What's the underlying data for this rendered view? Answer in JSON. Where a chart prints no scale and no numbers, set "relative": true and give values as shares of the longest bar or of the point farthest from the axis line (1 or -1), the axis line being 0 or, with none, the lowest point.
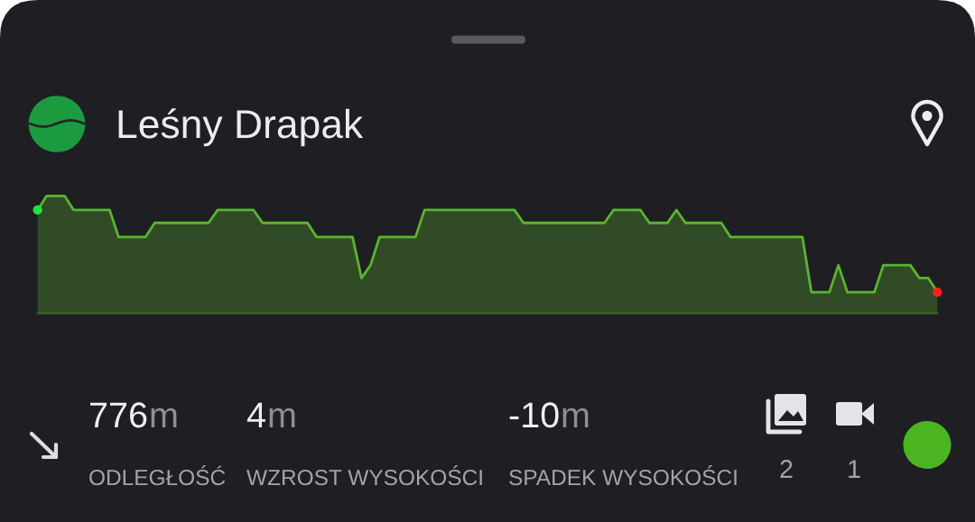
{
  "chart_data": {
    "type": "area",
    "relative": true,
    "title": "Leśny Drapak",
    "categories": [
      null,
      null,
      null,
      null,
      null,
      null,
      null,
      null,
      null,
      null,
      null,
      null,
      null,
      null,
      null,
      null,
      null,
      null,
      null,
      null,
      null,
      null,
      null,
      null,
      null,
      null,
      null,
      null,
      null,
      null,
      null,
      null,
      null,
      null,
      null,
      null,
      null,
      null,
      null,
      null,
      null,
      null,
      null,
      null,
      null,
      null,
      null,
      null,
      null,
      null,
      null,
      null,
      null,
      null,
      null,
      null,
      null,
      null,
      null,
      null,
      null,
      null,
      null,
      null,
      null,
      null,
      null,
      null,
      null,
      null,
      null,
      null,
      null,
      null,
      null,
      null,
      null,
      null,
      null,
      null,
      null,
      null,
      null,
      null,
      null,
      null,
      null,
      null,
      null,
      null,
      null,
      null,
      null,
      null,
      null,
      null,
      null,
      null,
      null,
      null,
      null
    ],
    "series": [
      {
        "color": "#5ab52e",
        "values": [
          0.88,
          1,
          1,
          1,
          0.88,
          0.88,
          0.88,
          0.88,
          0.88,
          0.65,
          0.65,
          0.65,
          0.65,
          0.77,
          0.77,
          0.77,
          0.77,
          0.77,
          0.77,
          0.77,
          0.88,
          0.88,
          0.88,
          0.88,
          0.88,
          0.77,
          0.77,
          0.77,
          0.77,
          0.77,
          0.77,
          0.65,
          0.65,
          0.65,
          0.65,
          0.65,
          0.3,
          0.41,
          0.65,
          0.65,
          0.65,
          0.65,
          0.65,
          0.88,
          0.88,
          0.88,
          0.88,
          0.88,
          0.88,
          0.88,
          0.88,
          0.88,
          0.88,
          0.88,
          0.77,
          0.77,
          0.77,
          0.77,
          0.77,
          0.77,
          0.77,
          0.77,
          0.77,
          0.77,
          0.88,
          0.88,
          0.88,
          0.88,
          0.77,
          0.77,
          0.77,
          0.88,
          0.77,
          0.77,
          0.77,
          0.77,
          0.77,
          0.65,
          0.65,
          0.65,
          0.65,
          0.65,
          0.65,
          0.65,
          0.65,
          0.65,
          0.18,
          0.18,
          0.18,
          0.41,
          0.18,
          0.18,
          0.18,
          0.18,
          0.41,
          0.41,
          0.41,
          0.41,
          0.3,
          0.3,
          0.18
        ]
      }
    ],
    "annotations": [
      "776m",
      "ODLEGŁOŚĆ",
      "4m",
      "WZROST WYSOKOŚCI",
      "-10m",
      "SPADEK WYSOKOŚCI",
      "2",
      "1"
    ]
  }
}
